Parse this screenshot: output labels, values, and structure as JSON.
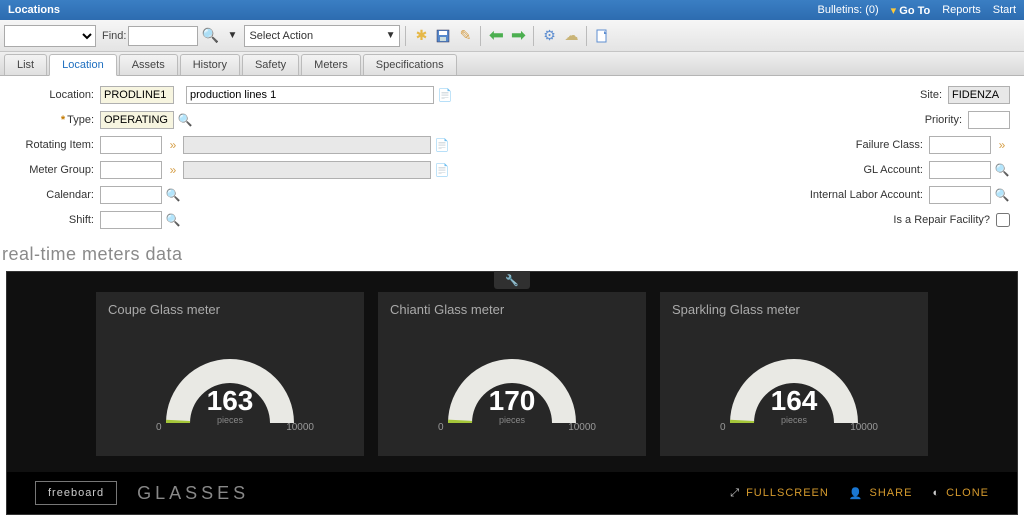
{
  "header": {
    "title": "Locations",
    "bulletins": "Bulletins: (0)",
    "goto": "Go To",
    "reports": "Reports",
    "start": "Start"
  },
  "toolbar": {
    "find_label": "Find:",
    "find_value": "",
    "action_label": "Select Action"
  },
  "tabs": [
    "List",
    "Location",
    "Assets",
    "History",
    "Safety",
    "Meters",
    "Specifications"
  ],
  "active_tab": "Location",
  "form": {
    "left": {
      "location_label": "Location:",
      "location_value": "PRODLINE1",
      "location_desc": "production lines 1",
      "type_label": "Type:",
      "type_value": "OPERATING",
      "rotating_label": "Rotating Item:",
      "rotating_value": "",
      "metergroup_label": "Meter Group:",
      "metergroup_value": "",
      "calendar_label": "Calendar:",
      "calendar_value": "",
      "shift_label": "Shift:",
      "shift_value": ""
    },
    "right": {
      "site_label": "Site:",
      "site_value": "FIDENZA",
      "priority_label": "Priority:",
      "priority_value": "",
      "failure_label": "Failure Class:",
      "failure_value": "",
      "gl_label": "GL Account:",
      "gl_value": "",
      "ilabor_label": "Internal Labor Account:",
      "ilabor_value": "",
      "repair_label": "Is a Repair Facility?"
    }
  },
  "realtime": {
    "title": "real-time meters data",
    "gauge_bg": "#2b2b2b",
    "gauge_track": "#e9e9e4",
    "gauge_accent": "#a4c639",
    "cards": [
      {
        "title": "Coupe Glass meter",
        "value": 163,
        "unit": "pieces",
        "min": 0,
        "max": 10000
      },
      {
        "title": "Chianti Glass meter",
        "value": 170,
        "unit": "pieces",
        "min": 0,
        "max": 10000
      },
      {
        "title": "Sparkling Glass meter",
        "value": 164,
        "unit": "pieces",
        "min": 0,
        "max": 10000
      }
    ],
    "freeboard": "freeboard",
    "dash_name": "GLASSES",
    "fullscreen": "FULLSCREEN",
    "share": "SHARE",
    "clone": "CLONE"
  }
}
